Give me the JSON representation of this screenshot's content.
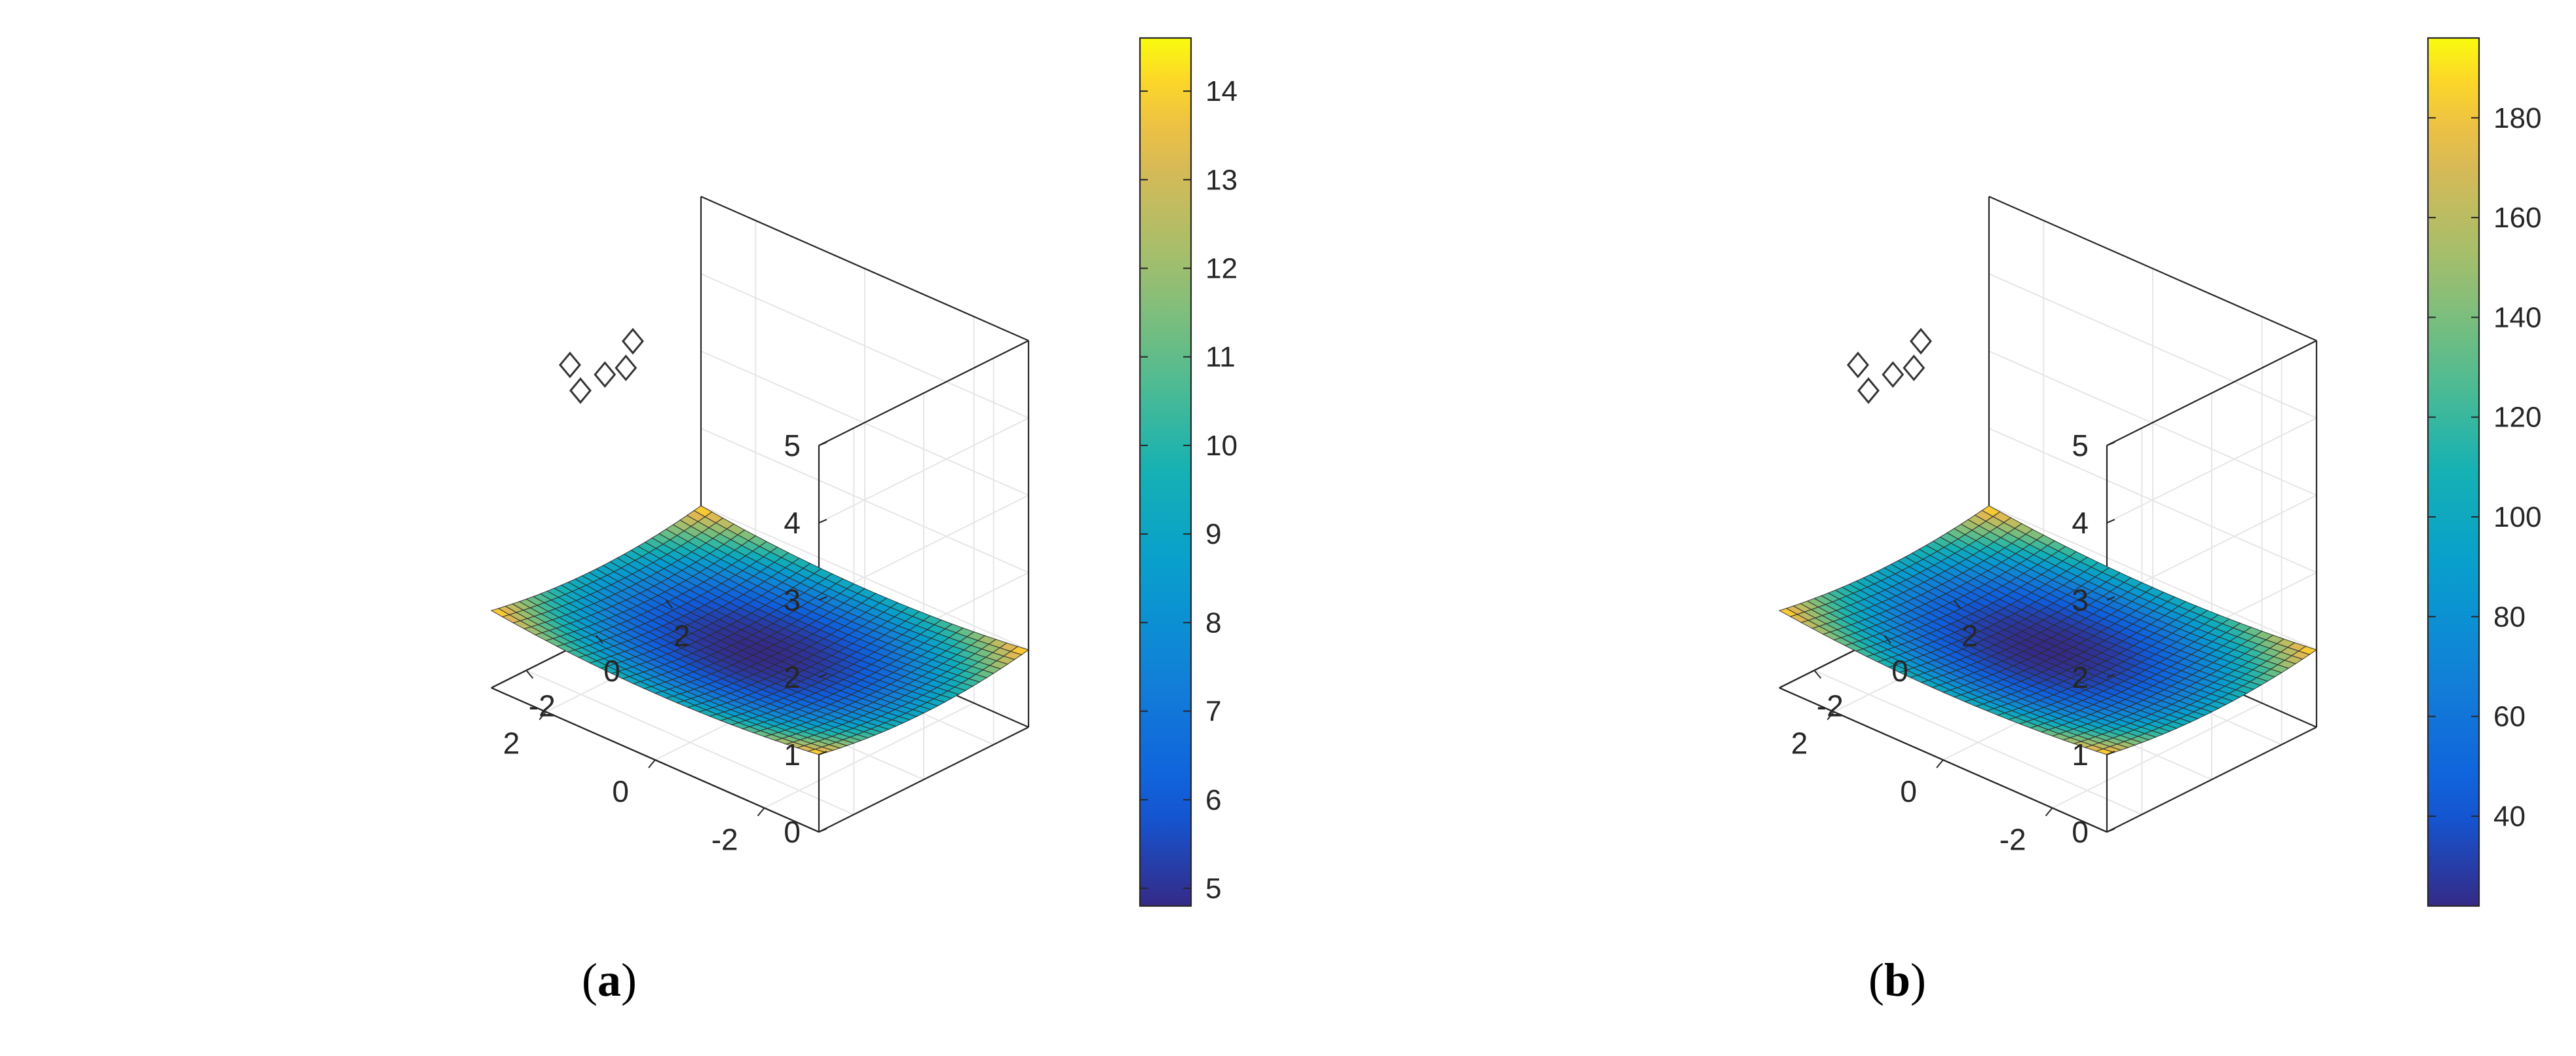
{
  "chart_data": [
    {
      "type": "surface",
      "panel_label": "a",
      "x_range": [
        -3,
        3
      ],
      "y_range": [
        -3,
        3
      ],
      "z_range": [
        0,
        5
      ],
      "x_ticks": [
        "-2",
        "0",
        "2"
      ],
      "y_ticks": [
        "-2",
        "0",
        "2"
      ],
      "z_ticks": [
        "0",
        "1",
        "2",
        "3",
        "4",
        "5"
      ],
      "grid": true,
      "colormap": "parula",
      "colorbar": {
        "min": 4.8,
        "max": 14.6,
        "ticks": [
          "5",
          "6",
          "7",
          "8",
          "9",
          "10",
          "11",
          "12",
          "13",
          "14"
        ],
        "position": "right"
      },
      "surface": {
        "description_values": {
          "center_value": 4.8,
          "corner_value": 14.6
        },
        "z_center": 0.72,
        "z_corner": 1.0,
        "mesh": 30
      },
      "markers": {
        "shape": "diamond",
        "points": [
          {
            "x": 2.2,
            "y": -2.0,
            "z": 4.2
          },
          {
            "x": 2.2,
            "y": -1.7,
            "z": 3.8
          },
          {
            "x": 2.2,
            "y": -1.0,
            "z": 3.85
          },
          {
            "x": 2.2,
            "y": -0.4,
            "z": 3.8
          },
          {
            "x": 2.2,
            "y": -0.2,
            "z": 4.1
          }
        ]
      }
    },
    {
      "type": "surface",
      "panel_label": "b",
      "x_range": [
        -3,
        3
      ],
      "y_range": [
        -3,
        3
      ],
      "z_range": [
        0,
        5
      ],
      "x_ticks": [
        "-2",
        "0",
        "2"
      ],
      "y_ticks": [
        "-2",
        "0",
        "2"
      ],
      "z_ticks": [
        "0",
        "1",
        "2",
        "3",
        "4",
        "5"
      ],
      "grid": true,
      "colormap": "parula",
      "colorbar": {
        "min": 22,
        "max": 196,
        "ticks": [
          "40",
          "60",
          "80",
          "100",
          "120",
          "140",
          "160",
          "180"
        ],
        "position": "right"
      },
      "surface": {
        "description_values": {
          "center_value": 22,
          "corner_value": 196
        },
        "z_center": 0.75,
        "z_corner": 1.0,
        "mesh": 30
      },
      "markers": {
        "shape": "diamond",
        "points": [
          {
            "x": 2.2,
            "y": -2.0,
            "z": 4.2
          },
          {
            "x": 2.2,
            "y": -1.7,
            "z": 3.8
          },
          {
            "x": 2.2,
            "y": -1.0,
            "z": 3.85
          },
          {
            "x": 2.2,
            "y": -0.4,
            "z": 3.8
          },
          {
            "x": 2.2,
            "y": -0.2,
            "z": 4.1
          }
        ]
      }
    }
  ],
  "labels": {
    "a": "a",
    "b": "b"
  }
}
